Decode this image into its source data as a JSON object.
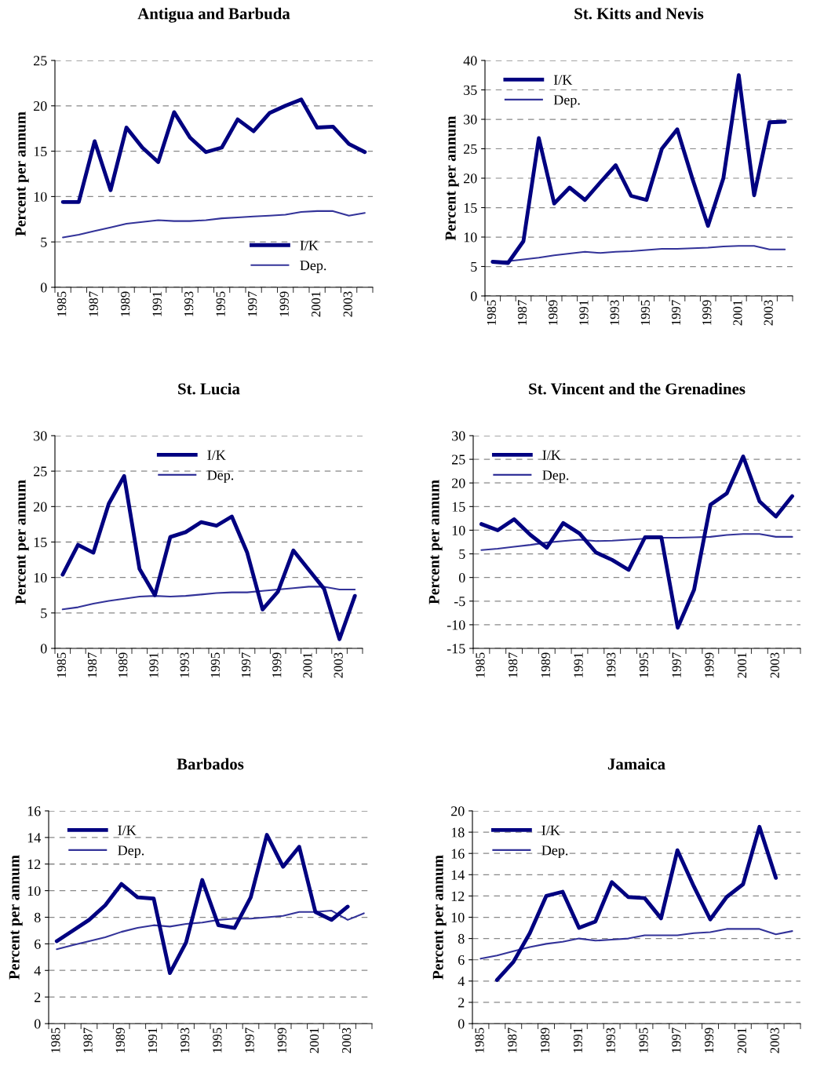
{
  "chart_data": [
    {
      "type": "line",
      "title": "Antigua and Barbuda",
      "ylabel": "Percent per annum",
      "categories": [
        "1985",
        null,
        "1987",
        null,
        "1989",
        null,
        "1991",
        null,
        "1993",
        null,
        "1995",
        null,
        "1997",
        null,
        "1999",
        null,
        "2001",
        null,
        "2003",
        null
      ],
      "ylim": [
        0,
        25
      ],
      "yticks": [
        0,
        5,
        10,
        15,
        20,
        25
      ],
      "grid": "y",
      "legend": "bottom right",
      "marker": "none",
      "series": [
        {
          "name": "I/K",
          "color": "#000080",
          "values": [
            9.4,
            9.4,
            16.1,
            10.7,
            17.6,
            15.4,
            13.8,
            19.3,
            16.5,
            14.9,
            15.4,
            18.5,
            17.2,
            19.2,
            20.0,
            20.7,
            17.6,
            17.7,
            15.8,
            14.9
          ]
        },
        {
          "name": "Dep.",
          "color": "#333399",
          "values": [
            5.5,
            5.8,
            6.2,
            6.6,
            7.0,
            7.2,
            7.4,
            7.3,
            7.3,
            7.4,
            7.6,
            7.7,
            7.8,
            7.9,
            8.0,
            8.3,
            8.4,
            8.4,
            7.9,
            8.2
          ]
        }
      ]
    },
    {
      "type": "line",
      "title": "St. Kitts and Nevis",
      "ylabel": "Percent per annum",
      "categories": [
        "1985",
        null,
        "1987",
        null,
        "1989",
        null,
        "1991",
        null,
        "1993",
        null,
        "1995",
        null,
        "1997",
        null,
        "1999",
        null,
        "2001",
        null,
        "2003",
        null
      ],
      "ylim": [
        0,
        40
      ],
      "yticks": [
        0,
        5,
        10,
        15,
        20,
        25,
        30,
        35,
        40
      ],
      "grid": "y",
      "legend": "top left",
      "marker": "none",
      "series": [
        {
          "name": "I/K",
          "color": "#000080",
          "values": [
            5.8,
            5.6,
            9.3,
            26.8,
            15.7,
            18.4,
            16.3,
            19.3,
            22.2,
            17.0,
            16.3,
            25.0,
            28.3,
            19.8,
            11.9,
            20.0,
            37.5,
            17.1,
            29.5,
            29.6
          ]
        },
        {
          "name": "Dep.",
          "color": "#333399",
          "values": [
            5.9,
            5.9,
            6.2,
            6.5,
            6.9,
            7.2,
            7.5,
            7.3,
            7.5,
            7.6,
            7.8,
            8.0,
            8.0,
            8.1,
            8.2,
            8.4,
            8.5,
            8.5,
            7.9,
            7.9
          ]
        }
      ]
    },
    {
      "type": "line",
      "title": "St. Lucia",
      "ylabel": "Percent per annum",
      "categories": [
        "1985",
        null,
        "1987",
        null,
        "1989",
        null,
        "1991",
        null,
        "1993",
        null,
        "1995",
        null,
        "1997",
        null,
        "1999",
        null,
        "2001",
        null,
        "2003",
        null
      ],
      "ylim": [
        0,
        30
      ],
      "yticks": [
        0,
        5,
        10,
        15,
        20,
        25,
        30
      ],
      "grid": "y",
      "legend": "top",
      "marker": "none",
      "series": [
        {
          "name": "I/K",
          "color": "#000080",
          "values": [
            10.4,
            14.6,
            13.5,
            20.4,
            24.3,
            11.2,
            7.5,
            15.7,
            16.4,
            17.8,
            17.3,
            18.6,
            13.5,
            5.5,
            8.0,
            13.8,
            11.1,
            8.4,
            1.3,
            7.4
          ]
        },
        {
          "name": "Dep.",
          "color": "#333399",
          "values": [
            5.5,
            5.8,
            6.3,
            6.7,
            7.0,
            7.3,
            7.4,
            7.3,
            7.4,
            7.6,
            7.8,
            7.9,
            7.9,
            8.1,
            8.3,
            8.5,
            8.7,
            8.7,
            8.3,
            8.3
          ]
        }
      ]
    },
    {
      "type": "line",
      "title": "St. Vincent and the Grenadines",
      "ylabel": "Percent per annum",
      "categories": [
        "1985",
        null,
        "1987",
        null,
        "1989",
        null,
        "1991",
        null,
        "1993",
        null,
        "1995",
        null,
        "1997",
        null,
        "1999",
        null,
        "2001",
        null,
        "2003",
        null
      ],
      "ylim": [
        -15,
        30
      ],
      "yticks": [
        -15,
        -10,
        -5,
        0,
        5,
        10,
        15,
        20,
        25,
        30
      ],
      "grid": "y",
      "legend": "top left",
      "marker": "none",
      "series": [
        {
          "name": "I/K",
          "color": "#000080",
          "values": [
            11.3,
            10.0,
            12.3,
            9.0,
            6.3,
            11.5,
            9.3,
            5.3,
            3.7,
            1.6,
            8.5,
            8.5,
            -10.6,
            -2.6,
            15.4,
            17.8,
            25.6,
            16.1,
            12.9,
            17.2
          ]
        },
        {
          "name": "Dep.",
          "color": "#333399",
          "values": [
            5.8,
            6.1,
            6.5,
            6.9,
            7.4,
            7.7,
            8.0,
            7.7,
            7.8,
            8.0,
            8.2,
            8.4,
            8.4,
            8.5,
            8.6,
            9.0,
            9.2,
            9.2,
            8.6,
            8.6
          ]
        }
      ]
    },
    {
      "type": "line",
      "title": "Barbados",
      "ylabel": "Percent per annum",
      "categories": [
        "1985",
        null,
        "1987",
        null,
        "1989",
        null,
        "1991",
        null,
        "1993",
        null,
        "1995",
        null,
        "1997",
        null,
        "1999",
        null,
        "2001",
        null,
        "2003",
        null
      ],
      "ylim": [
        0,
        16
      ],
      "yticks": [
        0,
        2,
        4,
        6,
        8,
        10,
        12,
        14,
        16
      ],
      "grid": "y",
      "legend": "top left",
      "marker": "none",
      "series": [
        {
          "name": "I/K",
          "color": "#000080",
          "values": [
            6.2,
            7.0,
            7.8,
            8.9,
            10.5,
            9.5,
            9.4,
            3.8,
            6.1,
            10.8,
            7.4,
            7.2,
            9.5,
            14.2,
            11.8,
            13.3,
            8.4,
            7.8,
            8.8,
            null
          ]
        },
        {
          "name": "Dep.",
          "color": "#333399",
          "values": [
            5.6,
            5.9,
            6.2,
            6.5,
            6.9,
            7.2,
            7.4,
            7.3,
            7.5,
            7.6,
            7.8,
            7.9,
            7.9,
            8.0,
            8.1,
            8.4,
            8.4,
            8.5,
            7.8,
            8.3
          ]
        }
      ]
    },
    {
      "type": "line",
      "title": "Jamaica",
      "ylabel": "Percent per annum",
      "categories": [
        "1985",
        null,
        "1987",
        null,
        "1989",
        null,
        "1991",
        null,
        "1993",
        null,
        "1995",
        null,
        "1997",
        null,
        "1999",
        null,
        "2001",
        null,
        "2003",
        null
      ],
      "ylim": [
        0,
        20
      ],
      "yticks": [
        0,
        2,
        4,
        6,
        8,
        10,
        12,
        14,
        16,
        18,
        20
      ],
      "grid": "y",
      "legend": "top left",
      "marker": "none",
      "series": [
        {
          "name": "I/K",
          "color": "#000080",
          "values": [
            null,
            4.1,
            5.8,
            8.5,
            12.0,
            12.4,
            9.0,
            9.6,
            13.3,
            11.9,
            11.8,
            9.9,
            16.3,
            12.9,
            9.8,
            11.9,
            13.1,
            18.5,
            13.7,
            null
          ]
        },
        {
          "name": "Dep.",
          "color": "#333399",
          "values": [
            6.1,
            6.4,
            6.8,
            7.2,
            7.5,
            7.7,
            8.0,
            7.8,
            7.9,
            8.0,
            8.3,
            8.3,
            8.3,
            8.5,
            8.6,
            8.9,
            8.9,
            8.9,
            8.4,
            8.7
          ]
        }
      ]
    }
  ]
}
